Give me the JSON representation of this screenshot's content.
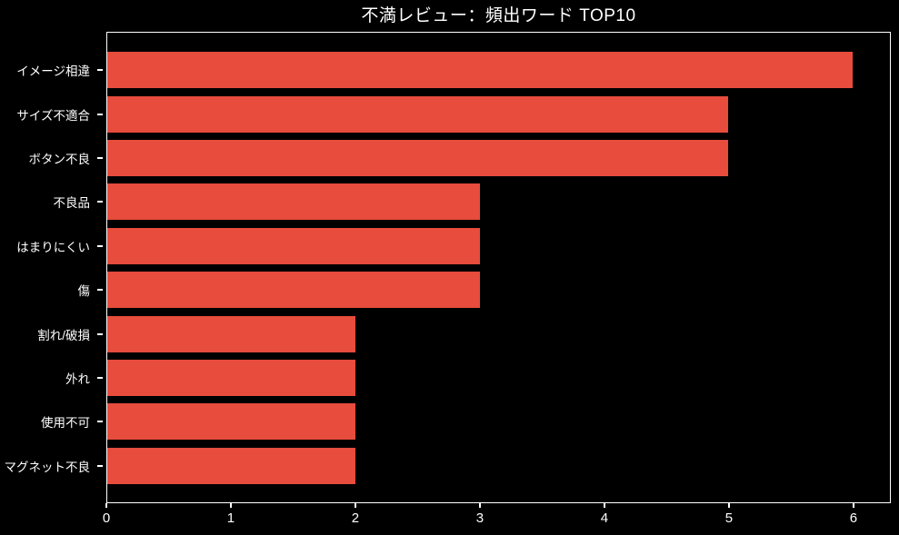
{
  "title": "不満レビュー：頻出ワード TOP10",
  "colors": {
    "background": "#000000",
    "bar": "#e74c3c",
    "text": "#ffffff",
    "spine": "#ffffff"
  },
  "chart_data": {
    "type": "bar",
    "orientation": "horizontal",
    "title": "不満レビュー：頻出ワード TOP10",
    "categories": [
      "イメージ相違",
      "サイズ不適合",
      "ボタン不良",
      "不良品",
      "はまりにくい",
      "傷",
      "割れ/破損",
      "外れ",
      "使用不可",
      "マグネット不良"
    ],
    "values": [
      6,
      5,
      5,
      3,
      3,
      3,
      2,
      2,
      2,
      2
    ],
    "xlabel": "",
    "ylabel": "",
    "xlim": [
      0,
      6.3
    ],
    "xticks": [
      0,
      1,
      2,
      3,
      4,
      5,
      6
    ],
    "grid": false,
    "legend_position": "none",
    "background": "black"
  }
}
